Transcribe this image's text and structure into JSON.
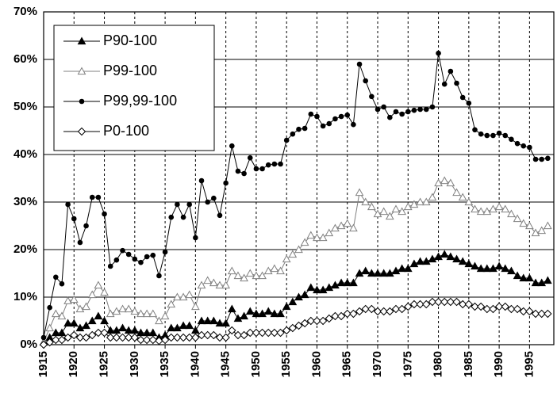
{
  "chart_data": {
    "type": "line",
    "x": [
      1915,
      1916,
      1917,
      1918,
      1919,
      1920,
      1921,
      1922,
      1923,
      1924,
      1925,
      1926,
      1927,
      1928,
      1929,
      1930,
      1931,
      1932,
      1933,
      1934,
      1935,
      1936,
      1937,
      1938,
      1939,
      1940,
      1941,
      1942,
      1943,
      1944,
      1945,
      1946,
      1947,
      1948,
      1949,
      1950,
      1951,
      1952,
      1953,
      1954,
      1955,
      1956,
      1957,
      1958,
      1959,
      1960,
      1961,
      1962,
      1963,
      1964,
      1965,
      1966,
      1967,
      1968,
      1969,
      1970,
      1971,
      1972,
      1973,
      1974,
      1975,
      1976,
      1977,
      1978,
      1979,
      1980,
      1981,
      1982,
      1983,
      1984,
      1985,
      1986,
      1987,
      1988,
      1989,
      1990,
      1991,
      1992,
      1993,
      1994,
      1995,
      1996,
      1997,
      1998
    ],
    "series": [
      {
        "name": "P90-100",
        "color": "#000000",
        "marker": "triangle-filled",
        "values": [
          0.5,
          1.5,
          2.5,
          2.5,
          4.5,
          4.5,
          3.5,
          4,
          5,
          6,
          5,
          3,
          3,
          3.5,
          3,
          3,
          2.5,
          2.5,
          2.5,
          1.5,
          2,
          3.5,
          3.5,
          4,
          4,
          3,
          5,
          5,
          5,
          4.5,
          4.5,
          7.5,
          5.5,
          6,
          7,
          6.5,
          6.5,
          7,
          6.5,
          6.5,
          8,
          9,
          10,
          10.5,
          12,
          11.5,
          11.5,
          12,
          12.5,
          13,
          13,
          13,
          15,
          15.5,
          15,
          15,
          15,
          15,
          15.5,
          16,
          16,
          17,
          17.5,
          17.5,
          18,
          18.5,
          19,
          18.5,
          18,
          17.5,
          17,
          16.5,
          16,
          16,
          16,
          16.5,
          16,
          15.5,
          14.5,
          14,
          14,
          13,
          13,
          13.5
        ]
      },
      {
        "name": "P99-100",
        "color": "#808080",
        "marker": "triangle-open",
        "values": [
          0.5,
          3.5,
          6.5,
          6,
          9.2,
          9.5,
          7.5,
          8,
          10.5,
          12.5,
          11,
          6.5,
          7,
          7.5,
          7.5,
          7,
          6.5,
          6.5,
          6.5,
          5,
          6,
          8.5,
          10,
          10,
          10.5,
          8,
          12.5,
          13.5,
          13,
          12.5,
          12.5,
          15.5,
          14.5,
          14,
          15,
          14.5,
          14.5,
          15.5,
          16,
          15.5,
          18,
          19,
          20,
          21.5,
          23,
          22.5,
          22.5,
          23.5,
          24.5,
          25,
          25.5,
          24.5,
          32,
          30,
          29,
          27.5,
          28,
          27,
          28.5,
          28,
          29,
          29.5,
          30,
          30,
          31,
          34,
          34.5,
          34,
          32,
          31,
          30,
          28.5,
          28,
          28,
          28.5,
          29,
          28.5,
          27.5,
          26.5,
          25.5,
          25,
          23.5,
          24,
          25
        ]
      },
      {
        "name": "P99,99-100",
        "color": "#000000",
        "marker": "circle",
        "values": [
          1.5,
          7.8,
          14.2,
          12.8,
          29.5,
          26.5,
          21.5,
          25,
          31,
          31,
          27.5,
          16.5,
          17.8,
          19.8,
          19,
          18,
          17.3,
          18.5,
          18.8,
          14.5,
          19.5,
          26.8,
          29.5,
          26.8,
          29.5,
          22.5,
          34.5,
          30,
          30.8,
          27.2,
          34,
          41.8,
          36.5,
          36,
          39.3,
          37,
          37,
          37.8,
          38,
          38,
          43,
          44.3,
          45.3,
          45.5,
          48.5,
          48,
          46,
          46.5,
          47.5,
          48,
          48.3,
          46.3,
          59,
          55.5,
          52.2,
          49.5,
          50,
          47.8,
          49,
          48.5,
          49,
          49.3,
          49.5,
          49.5,
          50,
          61.3,
          54.8,
          57.5,
          55,
          52,
          50.8,
          45.2,
          44.3,
          44,
          44,
          44.5,
          44,
          43.2,
          42.3,
          41.8,
          41.5,
          39,
          39,
          39.2
        ]
      },
      {
        "name": "P0-100",
        "color": "#000000",
        "marker": "diamond",
        "values": [
          0,
          0.5,
          1,
          1,
          1.5,
          2,
          1.5,
          1.5,
          2,
          2.5,
          2.5,
          1.5,
          1.5,
          1.5,
          1.5,
          1.5,
          1,
          1,
          1,
          0.8,
          1,
          1.5,
          1.5,
          1.5,
          1.5,
          1.5,
          2,
          2,
          2,
          1.5,
          1.5,
          3,
          2,
          2,
          2.5,
          2.5,
          2.5,
          2.5,
          2.5,
          2.5,
          3,
          3.5,
          4,
          4.5,
          5,
          5,
          5,
          5.5,
          6,
          6,
          6.5,
          6.5,
          7,
          7.5,
          7.5,
          7,
          7,
          7,
          7.5,
          7.5,
          8,
          8.5,
          8.5,
          8.5,
          9,
          9,
          9,
          9,
          9,
          8.5,
          8.5,
          8,
          8,
          7.5,
          7.5,
          8,
          8,
          7.5,
          7.5,
          7,
          7,
          6.5,
          6.5,
          6.5
        ]
      }
    ],
    "xlim": [
      1915,
      1999
    ],
    "xticks": [
      1915,
      1920,
      1925,
      1930,
      1935,
      1940,
      1945,
      1950,
      1955,
      1960,
      1965,
      1970,
      1975,
      1980,
      1985,
      1990,
      1995
    ],
    "ylim": [
      0,
      70
    ],
    "yticks": [
      {
        "value": 0,
        "label": "0%"
      },
      {
        "value": 10,
        "label": "10%"
      },
      {
        "value": 20,
        "label": "20%"
      },
      {
        "value": 30,
        "label": "30%"
      },
      {
        "value": 40,
        "label": "40%"
      },
      {
        "value": 50,
        "label": "50%"
      },
      {
        "value": 60,
        "label": "60%"
      },
      {
        "value": 70,
        "label": "70%"
      }
    ],
    "grid": true,
    "legend": "upper-left"
  }
}
